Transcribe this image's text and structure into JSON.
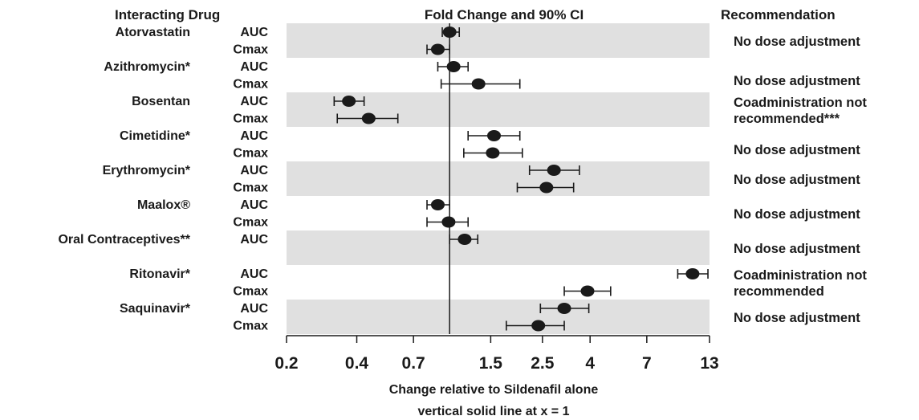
{
  "chart_data": {
    "type": "forest",
    "headers": {
      "drug": "Interacting Drug",
      "effect": "Fold Change and 90% CI",
      "recommendation": "Recommendation"
    },
    "x_scale": "log",
    "xlim": [
      0.2,
      13
    ],
    "x_ticks": [
      0.2,
      0.4,
      0.7,
      1.5,
      2.5,
      4,
      7,
      13
    ],
    "x_tick_labels": [
      "0.2",
      "0.4",
      "0.7",
      "1.5",
      "2.5",
      "4",
      "7",
      "13"
    ],
    "reference_line": 1,
    "xlabel_lines": [
      "Change relative to Sildenafil alone",
      "vertical solid line at x = 1"
    ],
    "groups": [
      {
        "drug": "Atorvastatin",
        "shaded": true,
        "recommendation": [
          "No dose adjustment"
        ],
        "rows": [
          {
            "metric": "AUC",
            "estimate": 1.0,
            "ci": [
              0.93,
              1.1
            ]
          },
          {
            "metric": "Cmax",
            "estimate": 0.89,
            "ci": [
              0.8,
              1.0
            ]
          }
        ]
      },
      {
        "drug": "Azithromycin*",
        "shaded": false,
        "recommendation": [
          "No dose adjustment"
        ],
        "rows": [
          {
            "metric": "AUC",
            "estimate": 1.04,
            "ci": [
              0.89,
              1.2
            ]
          },
          {
            "metric": "Cmax",
            "estimate": 1.33,
            "ci": [
              0.92,
              2.0
            ]
          }
        ]
      },
      {
        "drug": "Bosentan",
        "shaded": true,
        "recommendation": [
          "Coadministration not",
          "recommended***"
        ],
        "rows": [
          {
            "metric": "AUC",
            "estimate": 0.37,
            "ci": [
              0.32,
              0.43
            ]
          },
          {
            "metric": "Cmax",
            "estimate": 0.45,
            "ci": [
              0.33,
              0.6
            ]
          }
        ]
      },
      {
        "drug": "Cimetidine*",
        "shaded": false,
        "recommendation": [
          "No dose adjustment"
        ],
        "rows": [
          {
            "metric": "AUC",
            "estimate": 1.55,
            "ci": [
              1.2,
              2.0
            ]
          },
          {
            "metric": "Cmax",
            "estimate": 1.53,
            "ci": [
              1.15,
              2.05
            ]
          }
        ]
      },
      {
        "drug": "Erythromycin*",
        "shaded": true,
        "recommendation": [
          "No dose adjustment"
        ],
        "rows": [
          {
            "metric": "AUC",
            "estimate": 2.8,
            "ci": [
              2.2,
              3.6
            ]
          },
          {
            "metric": "Cmax",
            "estimate": 2.6,
            "ci": [
              1.95,
              3.4
            ]
          }
        ]
      },
      {
        "drug": "Maalox®",
        "shaded": false,
        "recommendation": [
          "No dose adjustment"
        ],
        "rows": [
          {
            "metric": "AUC",
            "estimate": 0.89,
            "ci": [
              0.8,
              1.0
            ]
          },
          {
            "metric": "Cmax",
            "estimate": 0.99,
            "ci": [
              0.8,
              1.2
            ]
          }
        ]
      },
      {
        "drug": "Oral Contraceptives**",
        "shaded": true,
        "recommendation": [
          "No dose adjustment"
        ],
        "rows": [
          {
            "metric": "AUC",
            "estimate": 1.16,
            "ci": [
              1.0,
              1.32
            ]
          }
        ]
      },
      {
        "drug": "Ritonavir*",
        "shaded": false,
        "recommendation": [
          "Coadministration not",
          "recommended"
        ],
        "rows": [
          {
            "metric": "AUC",
            "estimate": 11.0,
            "ci": [
              9.5,
              12.8
            ]
          },
          {
            "metric": "Cmax",
            "estimate": 3.9,
            "ci": [
              3.1,
              4.9
            ]
          }
        ]
      },
      {
        "drug": "Saquinavir*",
        "shaded": true,
        "recommendation": [
          "No dose adjustment"
        ],
        "rows": [
          {
            "metric": "AUC",
            "estimate": 3.1,
            "ci": [
              2.45,
              3.95
            ]
          },
          {
            "metric": "Cmax",
            "estimate": 2.4,
            "ci": [
              1.75,
              3.1
            ]
          }
        ]
      }
    ]
  }
}
